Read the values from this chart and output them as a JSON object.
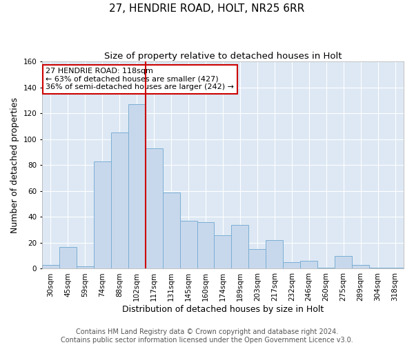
{
  "title": "27, HENDRIE ROAD, HOLT, NR25 6RR",
  "subtitle": "Size of property relative to detached houses in Holt",
  "xlabel": "Distribution of detached houses by size in Holt",
  "ylabel": "Number of detached properties",
  "categories": [
    "30sqm",
    "45sqm",
    "59sqm",
    "74sqm",
    "88sqm",
    "102sqm",
    "117sqm",
    "131sqm",
    "145sqm",
    "160sqm",
    "174sqm",
    "189sqm",
    "203sqm",
    "217sqm",
    "232sqm",
    "246sqm",
    "260sqm",
    "275sqm",
    "289sqm",
    "304sqm",
    "318sqm"
  ],
  "values": [
    3,
    17,
    2,
    83,
    105,
    127,
    93,
    59,
    37,
    36,
    26,
    34,
    15,
    22,
    5,
    6,
    1,
    10,
    3,
    1,
    1
  ],
  "bar_color": "#c8d8ec",
  "bar_edge_color": "#7aaed4",
  "vline_index": 6,
  "annotation_line1": "27 HENDRIE ROAD: 118sqm",
  "annotation_line2": "← 63% of detached houses are smaller (427)",
  "annotation_line3": "36% of semi-detached houses are larger (242) →",
  "annotation_box_facecolor": "#ffffff",
  "annotation_box_edgecolor": "#cc0000",
  "vline_color": "#cc0000",
  "ylim": [
    0,
    160
  ],
  "yticks": [
    0,
    20,
    40,
    60,
    80,
    100,
    120,
    140,
    160
  ],
  "footer1": "Contains HM Land Registry data © Crown copyright and database right 2024.",
  "footer2": "Contains public sector information licensed under the Open Government Licence v3.0.",
  "plot_bg_color": "#dde8f4",
  "fig_bg_color": "#ffffff",
  "grid_color": "#ffffff",
  "title_fontsize": 11,
  "subtitle_fontsize": 9.5,
  "axis_label_fontsize": 9,
  "tick_fontsize": 7.5,
  "annotation_fontsize": 8,
  "footer_fontsize": 7
}
